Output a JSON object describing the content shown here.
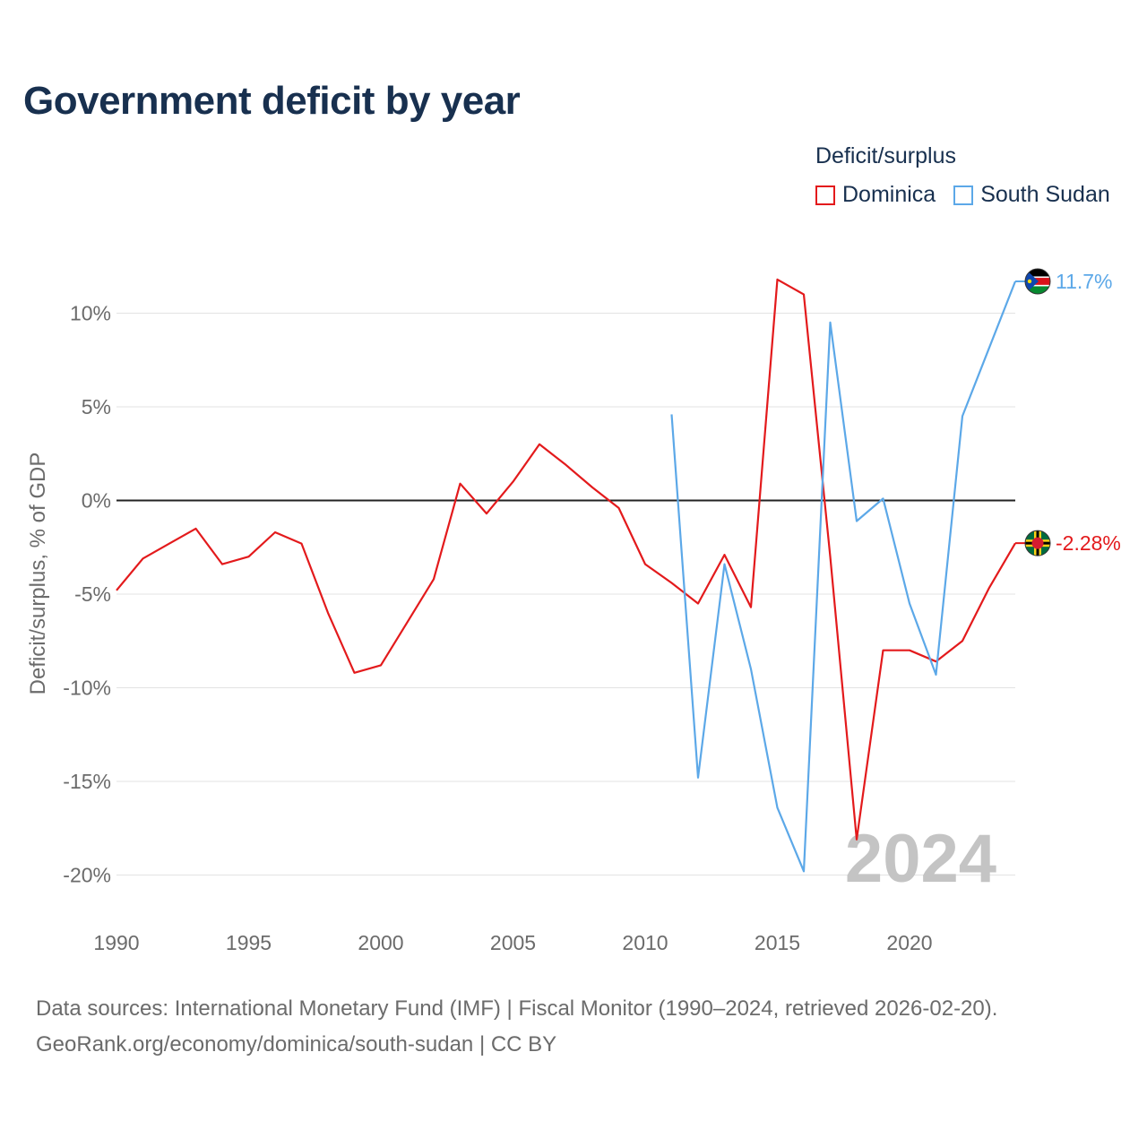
{
  "title": "Government deficit by year",
  "legend": {
    "title": "Deficit/surplus",
    "items": [
      {
        "name": "Dominica",
        "color": "#e31a1c"
      },
      {
        "name": "South Sudan",
        "color": "#5ca8e8"
      }
    ]
  },
  "watermark_year": "2024",
  "source": {
    "line1": "Data sources: International Monetary Fund (IMF) | Fiscal Monitor (1990–2024, retrieved 2026-02-20).",
    "line2": "GeoRank.org/economy/dominica/south-sudan | CC BY"
  },
  "chart_data": {
    "type": "line",
    "title": "Government deficit by year",
    "xlabel": "",
    "ylabel": "Deficit/surplus, % of GDP",
    "xlim": [
      1990,
      2024
    ],
    "ylim": [
      -21,
      12
    ],
    "y_ticks": [
      10,
      5,
      0,
      -5,
      -10,
      -15,
      -20
    ],
    "y_tick_labels": [
      "10%",
      "5%",
      "0%",
      "-5%",
      "-10%",
      "-15%",
      "-20%"
    ],
    "x_ticks": [
      1990,
      1995,
      2000,
      2005,
      2010,
      2015,
      2020
    ],
    "x_tick_labels": [
      "1990",
      "1995",
      "2000",
      "2005",
      "2010",
      "2015",
      "2020"
    ],
    "grid": true,
    "series": [
      {
        "name": "Dominica",
        "color": "#e31a1c",
        "end_label": "-2.28%",
        "x": [
          1990,
          1991,
          1992,
          1993,
          1994,
          1995,
          1996,
          1997,
          1998,
          1999,
          2000,
          2001,
          2002,
          2003,
          2004,
          2005,
          2006,
          2007,
          2008,
          2009,
          2010,
          2011,
          2012,
          2013,
          2014,
          2015,
          2016,
          2017,
          2018,
          2019,
          2020,
          2021,
          2022,
          2023,
          2024
        ],
        "values": [
          -4.8,
          -3.1,
          -2.3,
          -1.5,
          -3.4,
          -3.0,
          -1.7,
          -2.3,
          -6.0,
          -9.2,
          -8.8,
          -6.5,
          -4.2,
          0.9,
          -0.7,
          1.0,
          3.0,
          1.9,
          0.7,
          -0.4,
          -3.4,
          -4.4,
          -5.5,
          -2.9,
          -5.7,
          11.8,
          11.0,
          -3.0,
          -18.1,
          -8.0,
          -8.0,
          -8.6,
          -7.5,
          -4.7,
          -2.28
        ]
      },
      {
        "name": "South Sudan",
        "color": "#5ca8e8",
        "end_label": "11.7%",
        "x": [
          2011,
          2012,
          2013,
          2014,
          2015,
          2016,
          2017,
          2018,
          2019,
          2020,
          2021,
          2022,
          2023,
          2024
        ],
        "values": [
          4.6,
          -14.8,
          -3.4,
          -9.0,
          -16.4,
          -19.8,
          9.5,
          -1.1,
          0.1,
          -5.5,
          -9.3,
          4.5,
          8.1,
          11.7
        ]
      }
    ]
  }
}
